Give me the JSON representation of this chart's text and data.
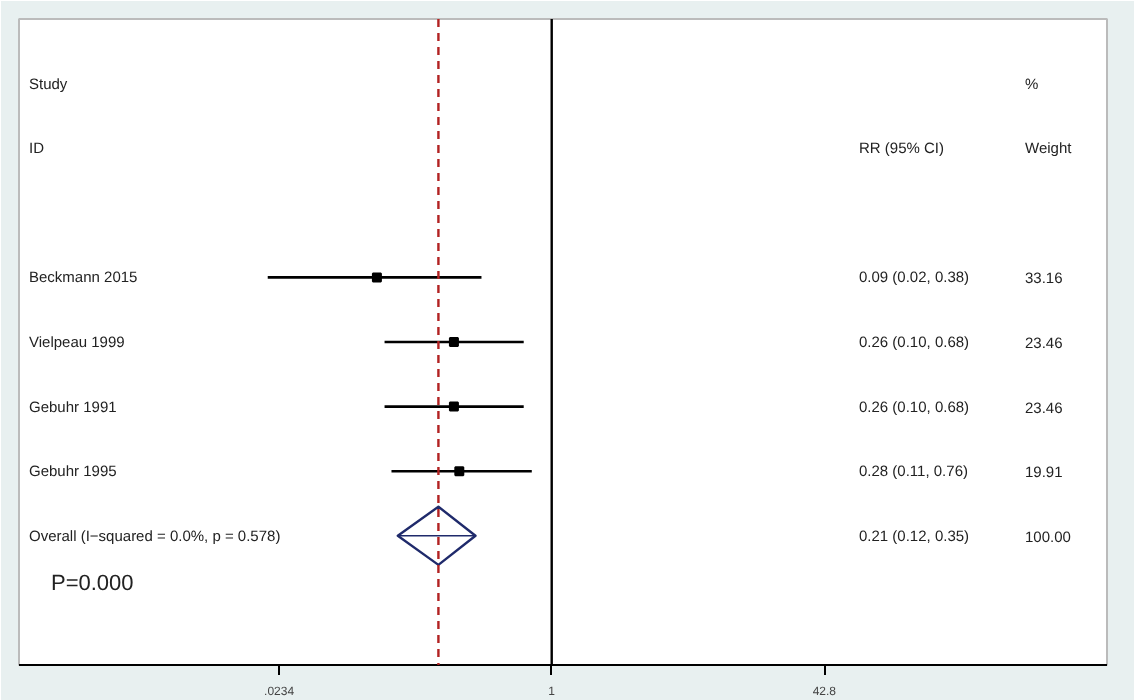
{
  "chart_data": {
    "type": "scatter",
    "categories": [
      "Beckmann 2015",
      "Vielpeau 1999",
      "Gebuhr 1991",
      "Gebuhr 1995",
      "Overall  (I−squared = 0.0%, p = 0.578)"
    ],
    "series": [
      {
        "marker": "square",
        "color": "#000000",
        "values": [
          0.09,
          0.26,
          0.26,
          0.28,
          null
        ],
        "errors": [
          [
            0.02,
            0.38
          ],
          [
            0.1,
            0.68
          ],
          [
            0.1,
            0.68
          ],
          [
            0.11,
            0.76
          ],
          null
        ]
      },
      {
        "marker": "diamond",
        "color": "#1f2a6b",
        "values": [
          null,
          null,
          null,
          null,
          0.21
        ],
        "errors": [
          null,
          null,
          null,
          null,
          [
            0.12,
            0.35
          ]
        ]
      }
    ],
    "orientation": "horizontal",
    "log": "x",
    "xlim": [
      0.00065,
      2100
    ],
    "xticks": [
      {
        "value": 0.0234,
        "label": ".0234"
      },
      {
        "value": 1,
        "label": "1"
      },
      {
        "value": 42.8,
        "label": "42.8"
      }
    ],
    "grid": false,
    "ref_lines": [
      {
        "axis": "x",
        "value": 1,
        "color": "#000000",
        "line_style": "solid"
      },
      {
        "axis": "x",
        "value": 0.21,
        "color": "#b22222",
        "line_style": "dashed"
      }
    ],
    "annotations": [
      "Study",
      "ID",
      "RR (95% CI)",
      "%",
      "Weight",
      "P=0.000",
      "0.09 (0.02, 0.38)",
      "0.26 (0.10, 0.68)",
      "0.26 (0.10, 0.68)",
      "0.28 (0.11, 0.76)",
      "0.21 (0.12, 0.35)",
      "33.16",
      "23.46",
      "23.46",
      "19.91",
      "100.00"
    ]
  }
}
